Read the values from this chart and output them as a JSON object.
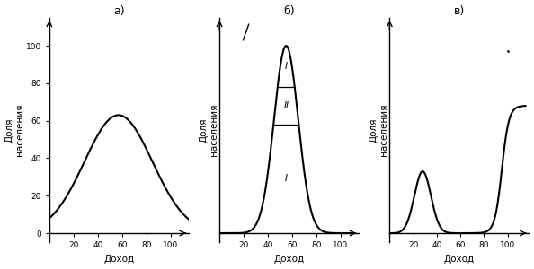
{
  "title_a": "а)",
  "title_b": "б)",
  "title_c": "в)",
  "ylabel": "Доля\nнаселения",
  "xlabel": "Доход",
  "background_color": "#ffffff",
  "curve_color": "#000000",
  "label_I_lower": "I",
  "label_II": "II",
  "label_I_upper": "I",
  "fig_width": 5.94,
  "fig_height": 3.0,
  "dpi": 100
}
